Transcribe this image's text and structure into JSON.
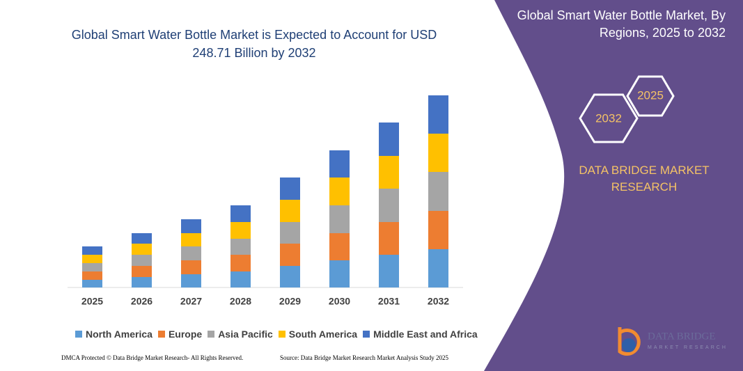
{
  "chart_data": {
    "type": "stacked-bar",
    "title": "Global Smart Water Bottle Market is Expected to Account for USD 248.71 Billion by 2032",
    "categories": [
      "2025",
      "2026",
      "2027",
      "2028",
      "2029",
      "2030",
      "2031",
      "2032"
    ],
    "series": [
      {
        "name": "North America",
        "color": "#5b9bd5",
        "values": [
          9.9,
          13.5,
          17.1,
          20.7,
          27.9,
          35.1,
          42.3,
          49.5
        ]
      },
      {
        "name": "Europe",
        "color": "#ed7d31",
        "values": [
          10.8,
          14.4,
          18,
          21.6,
          28.8,
          35.1,
          42.3,
          49.5
        ]
      },
      {
        "name": "Asia Pacific",
        "color": "#a5a5a5",
        "values": [
          10.8,
          14.4,
          18,
          20.7,
          27.9,
          36,
          43.2,
          50.4
        ]
      },
      {
        "name": "South America",
        "color": "#ffc000",
        "values": [
          10.8,
          14.4,
          17.1,
          21.6,
          28.8,
          36,
          42.3,
          49.5
        ]
      },
      {
        "name": "Middle East and Africa",
        "color": "#4472c4",
        "values": [
          10.8,
          13.5,
          18,
          21.6,
          28.8,
          35.1,
          43.2,
          49.5
        ]
      }
    ]
  },
  "panel": {
    "title": "Global Smart Water Bottle Market, By Regions, 2025 to 2032",
    "hexagons": [
      "2025",
      "2032"
    ],
    "brand": "DATA BRIDGE MARKET RESEARCH"
  },
  "logo": {
    "name": "DATA BRIDGE",
    "tagline": "MARKET RESEARCH"
  },
  "footer": {
    "copyright": "DMCA Protected © Data Bridge Market Research- All Rights Reserved.",
    "source": "Source: Data Bridge Market Research Market Analysis Study 2025"
  }
}
